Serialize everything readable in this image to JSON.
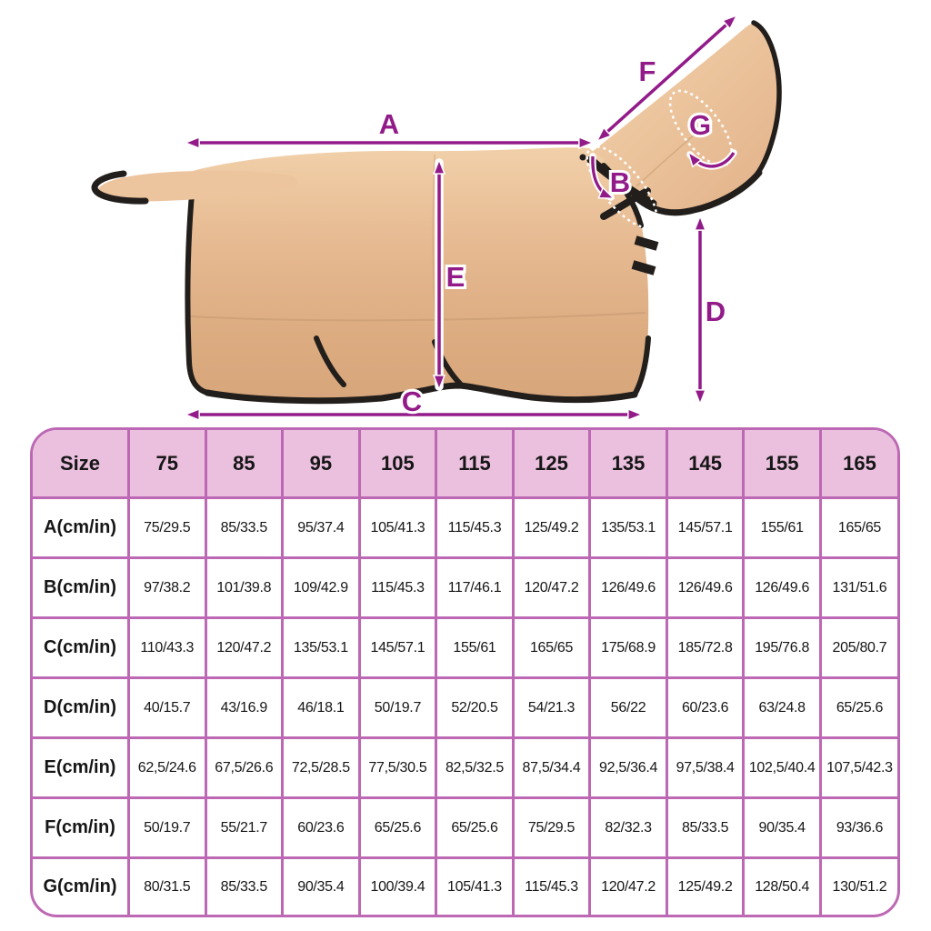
{
  "diagram": {
    "labels": {
      "a": "A",
      "b": "B",
      "c": "C",
      "d": "D",
      "e": "E",
      "f": "F",
      "g": "G"
    }
  },
  "table": {
    "header": [
      "Size",
      "75",
      "85",
      "95",
      "105",
      "115",
      "125",
      "135",
      "145",
      "155",
      "165"
    ],
    "rows": [
      {
        "label": "A(cm/in)",
        "values": [
          "75/29.5",
          "85/33.5",
          "95/37.4",
          "105/41.3",
          "115/45.3",
          "125/49.2",
          "135/53.1",
          "145/57.1",
          "155/61",
          "165/65"
        ]
      },
      {
        "label": "B(cm/in)",
        "values": [
          "97/38.2",
          "101/39.8",
          "109/42.9",
          "115/45.3",
          "117/46.1",
          "120/47.2",
          "126/49.6",
          "126/49.6",
          "126/49.6",
          "131/51.6"
        ]
      },
      {
        "label": "C(cm/in)",
        "values": [
          "110/43.3",
          "120/47.2",
          "135/53.1",
          "145/57.1",
          "155/61",
          "165/65",
          "175/68.9",
          "185/72.8",
          "195/76.8",
          "205/80.7"
        ]
      },
      {
        "label": "D(cm/in)",
        "values": [
          "40/15.7",
          "43/16.9",
          "46/18.1",
          "50/19.7",
          "52/20.5",
          "54/21.3",
          "56/22",
          "60/23.6",
          "63/24.8",
          "65/25.6"
        ]
      },
      {
        "label": "E(cm/in)",
        "values": [
          "62,5/24.6",
          "67,5/26.6",
          "72,5/28.5",
          "77,5/30.5",
          "82,5/32.5",
          "87,5/34.4",
          "92,5/36.4",
          "97,5/38.4",
          "102,5/40.4",
          "107,5/42.3"
        ]
      },
      {
        "label": "F(cm/in)",
        "values": [
          "50/19.7",
          "55/21.7",
          "60/23.6",
          "65/25.6",
          "65/25.6",
          "75/29.5",
          "82/32.3",
          "85/33.5",
          "90/35.4",
          "93/36.6"
        ]
      },
      {
        "label": "G(cm/in)",
        "values": [
          "80/31.5",
          "85/33.5",
          "90/35.4",
          "100/39.4",
          "105/41.3",
          "115/45.3",
          "120/47.2",
          "125/49.2",
          "128/50.4",
          "130/51.2"
        ]
      }
    ]
  },
  "colors": {
    "accent_purple": "#921b89",
    "table_border_pink": "#bd68b4",
    "table_header_pink": "#eac0de",
    "blanket_tan": "#e2b38a",
    "blanket_trim_black": "#221e1b"
  }
}
